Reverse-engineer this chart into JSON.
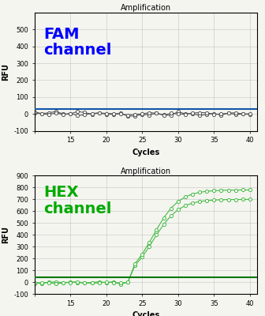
{
  "title": "Amplification",
  "xlabel": "Cycles",
  "ylabel": "RFU",
  "fam": {
    "label": "FAM\nchannel",
    "label_color": "#0000FF",
    "line_color": "#555555",
    "marker_color": "#555555",
    "threshold_color": "#1155AA",
    "ylim": [
      -100,
      600
    ],
    "yticks": [
      -100,
      0,
      100,
      200,
      300,
      400,
      500
    ],
    "threshold_y": 30,
    "flat_value": 2,
    "noise_amplitude": 8
  },
  "hex": {
    "label": "HEX\nchannel",
    "label_color": "#00AA00",
    "line_color": "#44BB44",
    "marker_color": "#44BB44",
    "threshold_color": "#007700",
    "ylim": [
      -100,
      900
    ],
    "yticks": [
      -100,
      0,
      100,
      200,
      300,
      400,
      500,
      600,
      700,
      800,
      900
    ],
    "threshold_y": 40,
    "sigmoid_midpoint": 26.5,
    "sigmoid_scale": 1.8,
    "sigmoid_max_low": 700,
    "sigmoid_max_high": 780
  },
  "xlim": [
    10,
    41
  ],
  "xticks": [
    10,
    15,
    20,
    25,
    30,
    35,
    40
  ],
  "xticklabels": [
    "",
    "15",
    "20",
    "25",
    "30",
    "35",
    "40"
  ],
  "background_color": "#f5f5f0",
  "grid_color": "#cccccc",
  "title_fontsize": 7,
  "axis_label_fontsize": 7,
  "tick_fontsize": 6,
  "channel_label_fontsize": 14
}
